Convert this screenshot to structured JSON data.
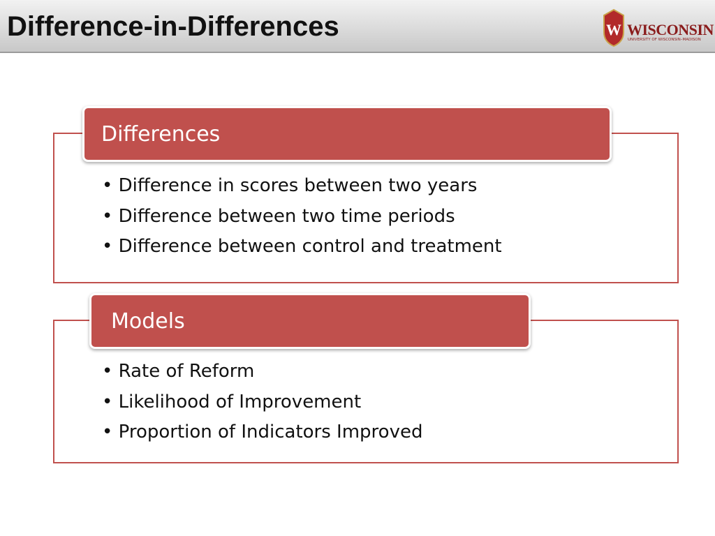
{
  "header": {
    "title": "Difference-in-Differences",
    "logo": {
      "name": "WISCONSIN",
      "subtitle": "UNIVERSITY OF WISCONSIN–MADISON"
    }
  },
  "sections": [
    {
      "heading": "Differences",
      "bullets": [
        "Difference in scores between two years",
        "Difference between two time periods",
        "Difference between control and treatment"
      ]
    },
    {
      "heading": "Models",
      "bullets": [
        "Rate of Reform",
        "Likelihood of Improvement",
        "Proportion of Indicators Improved"
      ]
    }
  ]
}
